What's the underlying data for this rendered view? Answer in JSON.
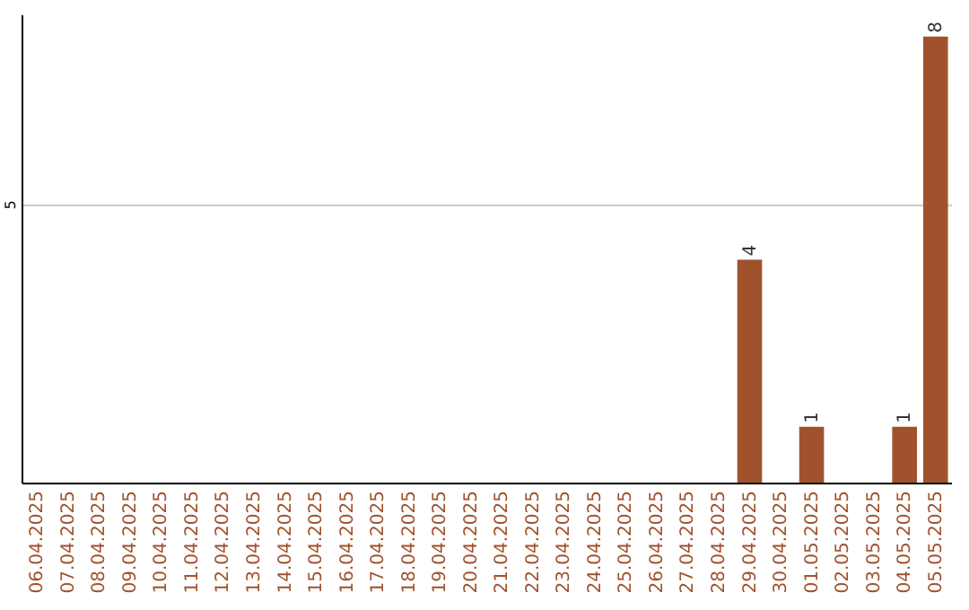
{
  "chart_data": {
    "type": "bar",
    "categories": [
      "06.04.2025",
      "07.04.2025",
      "08.04.2025",
      "09.04.2025",
      "10.04.2025",
      "11.04.2025",
      "12.04.2025",
      "13.04.2025",
      "14.04.2025",
      "15.04.2025",
      "16.04.2025",
      "17.04.2025",
      "18.04.2025",
      "19.04.2025",
      "20.04.2025",
      "21.04.2025",
      "22.04.2025",
      "23.04.2025",
      "24.04.2025",
      "25.04.2025",
      "26.04.2025",
      "27.04.2025",
      "28.04.2025",
      "29.04.2025",
      "30.04.2025",
      "01.05.2025",
      "02.05.2025",
      "03.05.2025",
      "04.05.2025",
      "05.05.2025"
    ],
    "values": [
      null,
      null,
      null,
      null,
      null,
      null,
      null,
      null,
      null,
      null,
      null,
      null,
      null,
      null,
      null,
      null,
      null,
      null,
      null,
      null,
      null,
      null,
      null,
      4,
      null,
      1,
      null,
      null,
      1,
      8
    ],
    "data_labels": true,
    "color": "#a0522d",
    "ylim": [
      0,
      8.4
    ],
    "yticks": [
      5
    ],
    "grid": "y"
  }
}
